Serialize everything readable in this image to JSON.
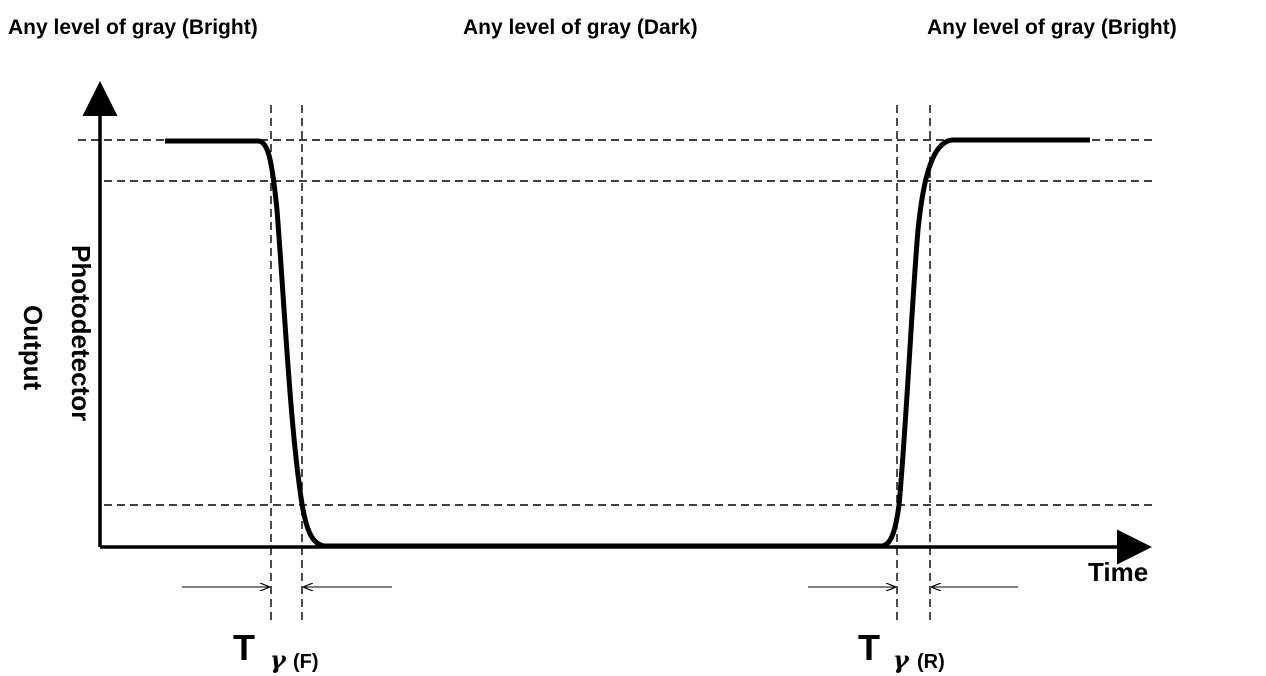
{
  "states": {
    "left": "Any level of gray (Bright)",
    "middle": "Any level of gray (Dark)",
    "right": "Any level of gray (Bright)"
  },
  "axes": {
    "y_label_line1": "Photodetector",
    "y_label_line2": "Output",
    "x_label": "Time"
  },
  "timing": {
    "fall": {
      "main": "T",
      "symbol": "γ",
      "suffix": "(F)"
    },
    "rise": {
      "main": "T",
      "symbol": "γ",
      "suffix": "(R)"
    }
  }
}
